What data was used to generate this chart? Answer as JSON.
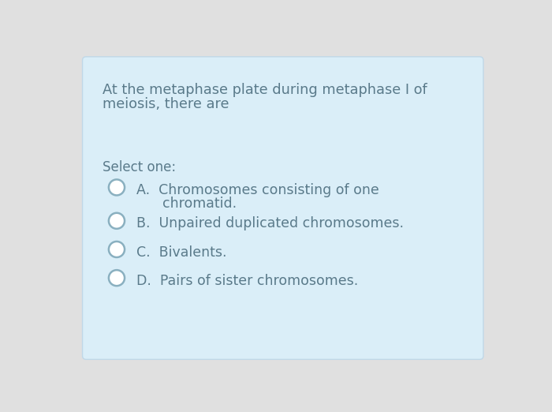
{
  "bg_outer": "#e0e0e0",
  "bg_card": "#daeef8",
  "card_border": "#c0d8e8",
  "text_color": "#5a7a8a",
  "question_line1": "At the metaphase plate during metaphase I of",
  "question_line2": "meiosis, there are",
  "select_label": "Select one:",
  "options": [
    [
      "A.  Chromosomes consisting of one",
      "      chromatid."
    ],
    [
      "B.  Unpaired duplicated chromosomes.",
      ""
    ],
    [
      "C.  Bivalents.",
      ""
    ],
    [
      "D.  Pairs of sister chromosomes.",
      ""
    ]
  ],
  "question_fontsize": 12.8,
  "select_fontsize": 12.0,
  "option_fontsize": 12.5,
  "circle_edge_color": "#8ab0c0",
  "fig_width": 7.0,
  "fig_height": 5.22,
  "dpi": 100
}
